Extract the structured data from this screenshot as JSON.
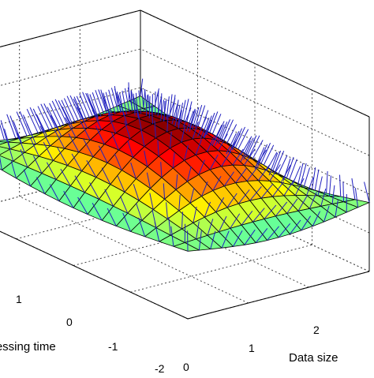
{
  "chart_data": {
    "type": "surface3d",
    "title": "",
    "xlabel": "Data size",
    "ylabel": "Processing time",
    "zlabel": "",
    "x_ticks": [
      "0",
      "1",
      "2"
    ],
    "y_ticks": [
      "1",
      "0",
      "-1",
      "-2"
    ],
    "x_range": [
      0,
      3
    ],
    "y_range": [
      -2,
      2
    ],
    "grid": true,
    "colormap": "jet",
    "surface_function": "z = sin(x) * sin(x) style bump: peak near center, negative lobes at edges",
    "normals_shown": true,
    "normals_color": "#1f1fbf"
  }
}
